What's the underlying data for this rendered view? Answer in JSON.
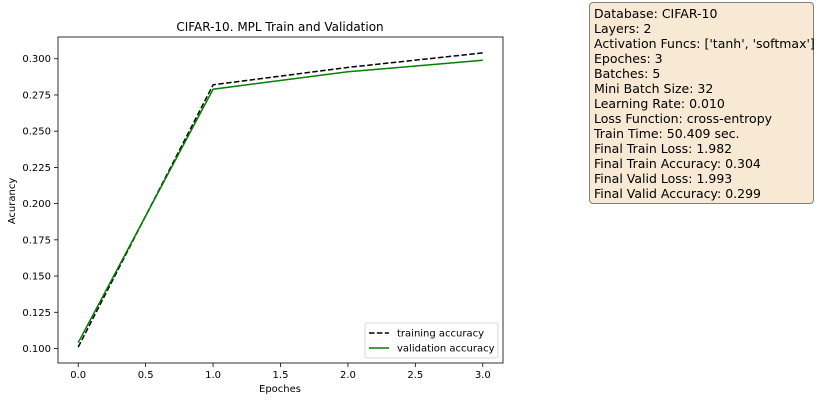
{
  "chart_data": {
    "type": "line",
    "title": "CIFAR-10. MPL Train and Validation",
    "xlabel": "Epoches",
    "ylabel": "Acurancy",
    "x": [
      0,
      1,
      2,
      3
    ],
    "xlim": [
      -0.15,
      3.15
    ],
    "ylim": [
      0.09,
      0.315
    ],
    "xticks": [
      "0.0",
      "0.5",
      "1.0",
      "1.5",
      "2.0",
      "2.5",
      "3.0"
    ],
    "yticks": [
      "0.100",
      "0.125",
      "0.150",
      "0.175",
      "0.200",
      "0.225",
      "0.250",
      "0.275",
      "0.300"
    ],
    "grid": false,
    "legend_position": "lower-right",
    "series": [
      {
        "name": "training accuracy",
        "values": [
          0.101,
          0.282,
          0.294,
          0.304
        ],
        "color": "#000000",
        "style": "dashed"
      },
      {
        "name": "validation accuracy",
        "values": [
          0.104,
          0.279,
          0.291,
          0.299
        ],
        "color": "#008000",
        "style": "solid"
      }
    ]
  },
  "info_box": {
    "lines": [
      "Database: CIFAR-10",
      "Layers: 2",
      "Activation Funcs: ['tanh', 'softmax']",
      "Epoches: 3",
      "Batches: 5",
      "Mini Batch Size: 32",
      "Learning Rate: 0.010",
      "Loss Function: cross-entropy",
      "Train Time: 50.409 sec.",
      "Final Train Loss: 1.982",
      "Final Train Accuracy: 0.304",
      "Final Valid Loss: 1.993",
      "Final Valid Accuracy: 0.299"
    ],
    "background": "#f7e9d3"
  }
}
